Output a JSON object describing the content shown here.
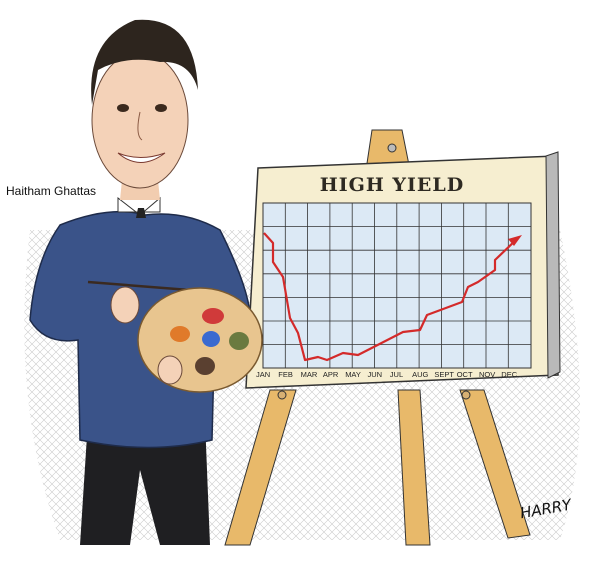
{
  "caption": "Haitham Ghattas",
  "board": {
    "title": "HIGH YIELD",
    "months": [
      "JAN",
      "FEB",
      "MAR",
      "APR",
      "MAY",
      "JUN",
      "JUL",
      "AUG",
      "SEPT",
      "OCT",
      "NOV",
      "DEC"
    ]
  },
  "signature": "HARRY",
  "colors": {
    "sweater": "#3a5389",
    "line": "#d42a2a",
    "grid_bg": "#dce9f5",
    "easel": "#e8b96a",
    "palette": "#e8c58f"
  }
}
